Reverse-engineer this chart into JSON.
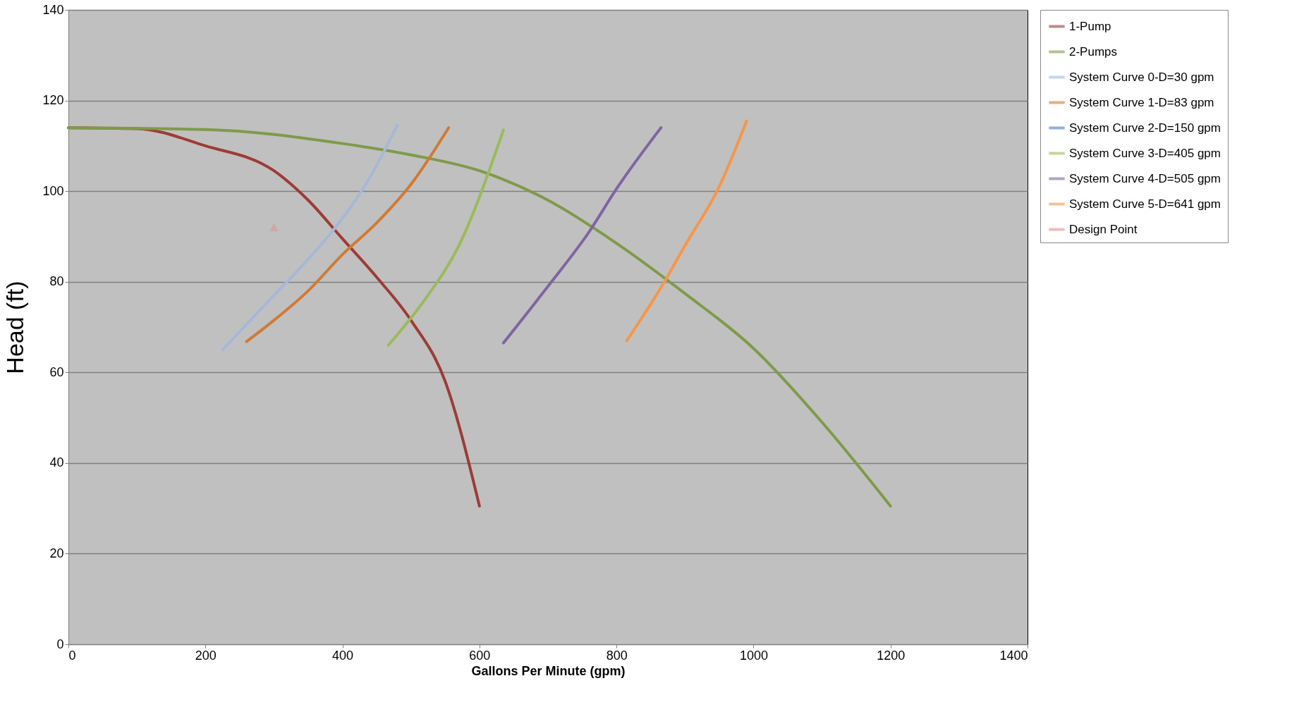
{
  "chart_data": {
    "type": "line",
    "xlabel": "Gallons Per Minute (gpm)",
    "ylabel": "Head (ft)",
    "xlim": [
      0,
      1400
    ],
    "ylim": [
      0,
      140
    ],
    "xticks": [
      0,
      200,
      400,
      600,
      800,
      1000,
      1200,
      1400
    ],
    "yticks": [
      0,
      20,
      40,
      60,
      80,
      100,
      120,
      140
    ],
    "grid": "y",
    "legend": "right",
    "series": [
      {
        "name": "1-Pump",
        "color": "#9e3b37",
        "x": [
          0,
          100,
          200,
          300,
          350,
          400,
          450,
          500,
          550,
          600
        ],
        "values": [
          114,
          113.8,
          110,
          104.5,
          98,
          89.5,
          81,
          71.5,
          58,
          30.5
        ]
      },
      {
        "name": "2-Pumps",
        "color": "#7f9a48",
        "x": [
          0,
          200,
          400,
          500,
          600,
          700,
          800,
          900,
          1000,
          1100,
          1200
        ],
        "values": [
          114,
          113.6,
          110.5,
          108,
          104.5,
          98,
          88.5,
          77.4,
          65.3,
          49,
          30.5
        ]
      },
      {
        "name": "System Curve 0-D=30 gpm",
        "color": "#a5b8d8",
        "x": [
          225,
          300,
          350,
          400,
          440,
          480
        ],
        "values": [
          65,
          77,
          85,
          94,
          103,
          114.5
        ]
      },
      {
        "name": "System Curve 1-D=83 gpm",
        "color": "#d07a34",
        "x": [
          260,
          300,
          350,
          400,
          450,
          500,
          555
        ],
        "values": [
          66.8,
          71.5,
          78,
          86,
          93,
          101.5,
          114
        ]
      },
      {
        "name": "System Curve 2-D=150 gpm",
        "color": "#4a7ebb"
      },
      {
        "name": "System Curve 3-D=405 gpm",
        "color": "#9bbb59",
        "x": [
          467,
          520,
          570,
          635
        ],
        "values": [
          66,
          76,
          88,
          113.5
        ]
      },
      {
        "name": "System Curve 4-D=505 gpm",
        "color": "#8064a2",
        "x": [
          635,
          700,
          760,
          800,
          865
        ],
        "values": [
          66.5,
          79,
          91,
          100.5,
          114
        ]
      },
      {
        "name": "System Curve 5-D=641 gpm",
        "color": "#f79646",
        "x": [
          815,
          870,
          900,
          950,
          990
        ],
        "values": [
          67,
          80,
          88,
          101,
          115.5
        ]
      },
      {
        "name": "Design Point",
        "color": "#d99694",
        "type": "scatter",
        "marker": "triangle",
        "x": [
          300
        ],
        "values": [
          92
        ]
      }
    ]
  }
}
